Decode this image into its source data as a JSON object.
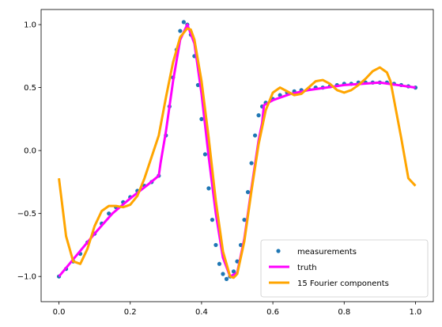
{
  "chart_data": {
    "type": "line",
    "title": "",
    "xlabel": "",
    "ylabel": "",
    "xlim": [
      -0.05,
      1.05
    ],
    "ylim": [
      -1.2,
      1.12
    ],
    "xticks": [
      0.0,
      0.2,
      0.4,
      0.6,
      0.8,
      1.0
    ],
    "xtick_labels": [
      "0.0",
      "0.2",
      "0.4",
      "0.6",
      "0.8",
      "1.0"
    ],
    "yticks": [
      -1.0,
      -0.5,
      0.0,
      0.5,
      1.0
    ],
    "ytick_labels": [
      "−1.0",
      "−0.5",
      "0.0",
      "0.5",
      "1.0"
    ],
    "grid": false,
    "legend_position": "lower-right",
    "series": [
      {
        "name": "measurements",
        "kind": "scatter",
        "color": "#1f77b4",
        "x": [
          0.0,
          0.02,
          0.04,
          0.06,
          0.08,
          0.1,
          0.12,
          0.14,
          0.16,
          0.18,
          0.2,
          0.22,
          0.24,
          0.26,
          0.28,
          0.3,
          0.31,
          0.32,
          0.33,
          0.34,
          0.35,
          0.36,
          0.37,
          0.38,
          0.39,
          0.4,
          0.41,
          0.42,
          0.43,
          0.44,
          0.45,
          0.46,
          0.47,
          0.48,
          0.49,
          0.5,
          0.51,
          0.52,
          0.53,
          0.54,
          0.55,
          0.56,
          0.57,
          0.58,
          0.6,
          0.62,
          0.64,
          0.66,
          0.68,
          0.7,
          0.72,
          0.74,
          0.76,
          0.78,
          0.8,
          0.82,
          0.84,
          0.86,
          0.88,
          0.9,
          0.92,
          0.94,
          0.96,
          0.98,
          1.0
        ],
        "y": [
          -1.0,
          -0.94,
          -0.88,
          -0.82,
          -0.73,
          -0.66,
          -0.58,
          -0.5,
          -0.45,
          -0.41,
          -0.37,
          -0.32,
          -0.28,
          -0.25,
          -0.2,
          0.12,
          0.35,
          0.58,
          0.8,
          0.95,
          1.02,
          1.0,
          0.92,
          0.75,
          0.52,
          0.25,
          -0.03,
          -0.3,
          -0.55,
          -0.75,
          -0.9,
          -0.98,
          -1.02,
          -1.0,
          -0.96,
          -0.88,
          -0.75,
          -0.55,
          -0.33,
          -0.1,
          0.12,
          0.28,
          0.35,
          0.38,
          0.41,
          0.44,
          0.46,
          0.47,
          0.48,
          0.49,
          0.5,
          0.5,
          0.51,
          0.52,
          0.53,
          0.53,
          0.54,
          0.54,
          0.54,
          0.54,
          0.54,
          0.53,
          0.52,
          0.51,
          0.5
        ]
      },
      {
        "name": "truth",
        "kind": "line",
        "color": "#ff00ff",
        "x": [
          0.0,
          0.05,
          0.1,
          0.15,
          0.2,
          0.25,
          0.28,
          0.285,
          0.3,
          0.32,
          0.34,
          0.36,
          0.38,
          0.4,
          0.42,
          0.44,
          0.46,
          0.48,
          0.5,
          0.52,
          0.54,
          0.56,
          0.57,
          0.575,
          0.6,
          0.65,
          0.7,
          0.75,
          0.8,
          0.85,
          0.9,
          0.95,
          1.0
        ],
        "y": [
          -1.0,
          -0.83,
          -0.66,
          -0.5,
          -0.38,
          -0.27,
          -0.2,
          -0.1,
          0.15,
          0.55,
          0.88,
          1.0,
          0.85,
          0.45,
          -0.05,
          -0.5,
          -0.85,
          -1.0,
          -0.97,
          -0.7,
          -0.3,
          0.08,
          0.22,
          0.36,
          0.4,
          0.45,
          0.48,
          0.5,
          0.52,
          0.53,
          0.54,
          0.52,
          0.5
        ]
      },
      {
        "name": "15 Fourier components",
        "kind": "line",
        "color": "#ffa500",
        "x": [
          0.0,
          0.02,
          0.04,
          0.06,
          0.08,
          0.1,
          0.12,
          0.14,
          0.16,
          0.18,
          0.2,
          0.22,
          0.24,
          0.26,
          0.28,
          0.3,
          0.32,
          0.34,
          0.36,
          0.37,
          0.38,
          0.4,
          0.42,
          0.44,
          0.46,
          0.48,
          0.49,
          0.5,
          0.52,
          0.54,
          0.56,
          0.58,
          0.6,
          0.62,
          0.64,
          0.66,
          0.68,
          0.7,
          0.72,
          0.74,
          0.76,
          0.78,
          0.8,
          0.82,
          0.84,
          0.86,
          0.88,
          0.9,
          0.92,
          0.93,
          0.94,
          0.96,
          0.98,
          1.0
        ],
        "y": [
          -0.22,
          -0.68,
          -0.88,
          -0.9,
          -0.78,
          -0.6,
          -0.48,
          -0.44,
          -0.44,
          -0.45,
          -0.43,
          -0.36,
          -0.22,
          -0.05,
          0.12,
          0.42,
          0.7,
          0.9,
          0.97,
          0.96,
          0.88,
          0.55,
          0.1,
          -0.4,
          -0.8,
          -1.0,
          -1.01,
          -0.98,
          -0.72,
          -0.32,
          0.05,
          0.32,
          0.46,
          0.5,
          0.47,
          0.44,
          0.45,
          0.5,
          0.55,
          0.56,
          0.53,
          0.48,
          0.46,
          0.48,
          0.52,
          0.57,
          0.63,
          0.66,
          0.62,
          0.55,
          0.4,
          0.1,
          -0.22,
          -0.28
        ]
      }
    ]
  }
}
